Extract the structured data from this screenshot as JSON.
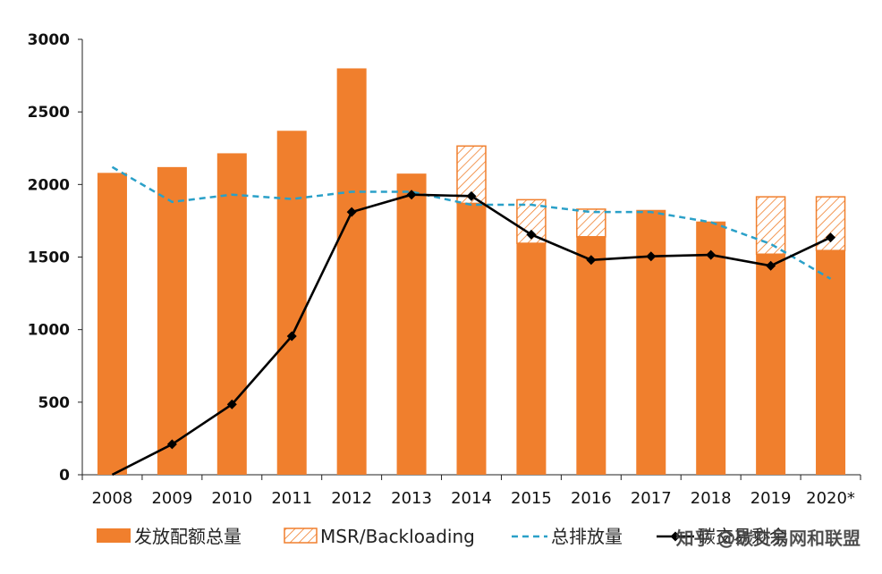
{
  "chart_data": {
    "type": "bar",
    "categories": [
      "2008",
      "2009",
      "2010",
      "2011",
      "2012",
      "2013",
      "2014",
      "2015",
      "2016",
      "2017",
      "2018",
      "2019",
      "2020*"
    ],
    "ylim": [
      0,
      3000
    ],
    "yticks": [
      0,
      500,
      1000,
      1500,
      2000,
      2500,
      3000
    ],
    "grid": false,
    "legend_position": "bottom",
    "series": [
      {
        "name": "发放配额总量",
        "type": "bar",
        "color": "#F07F2D",
        "values": [
          2080,
          2120,
          2215,
          2370,
          2800,
          2075,
          1870,
          1595,
          1640,
          1825,
          1745,
          1520,
          1545
        ]
      },
      {
        "name": "MSR/Backloading",
        "type": "bar-stacked-hatched",
        "color": "#F07F2D",
        "values": [
          0,
          0,
          0,
          0,
          0,
          0,
          395,
          300,
          190,
          0,
          0,
          395,
          370
        ]
      },
      {
        "name": "总排放量",
        "type": "line-dashed",
        "color": "#2AA0C8",
        "values": [
          2120,
          1880,
          1930,
          1900,
          1950,
          1950,
          1860,
          1860,
          1810,
          1810,
          1740,
          1590,
          1350
        ]
      },
      {
        "name": "碳交易剩余",
        "type": "line-markers",
        "color": "#000000",
        "values": [
          -20,
          210,
          485,
          955,
          1810,
          1930,
          1920,
          1655,
          1480,
          1505,
          1515,
          1440,
          1635
        ]
      }
    ],
    "legend": [
      "发放配额总量",
      "MSR/Backloading",
      "总排放量",
      "碳交易剩余"
    ]
  },
  "watermark": "知乎 @碳交易网和联盟"
}
